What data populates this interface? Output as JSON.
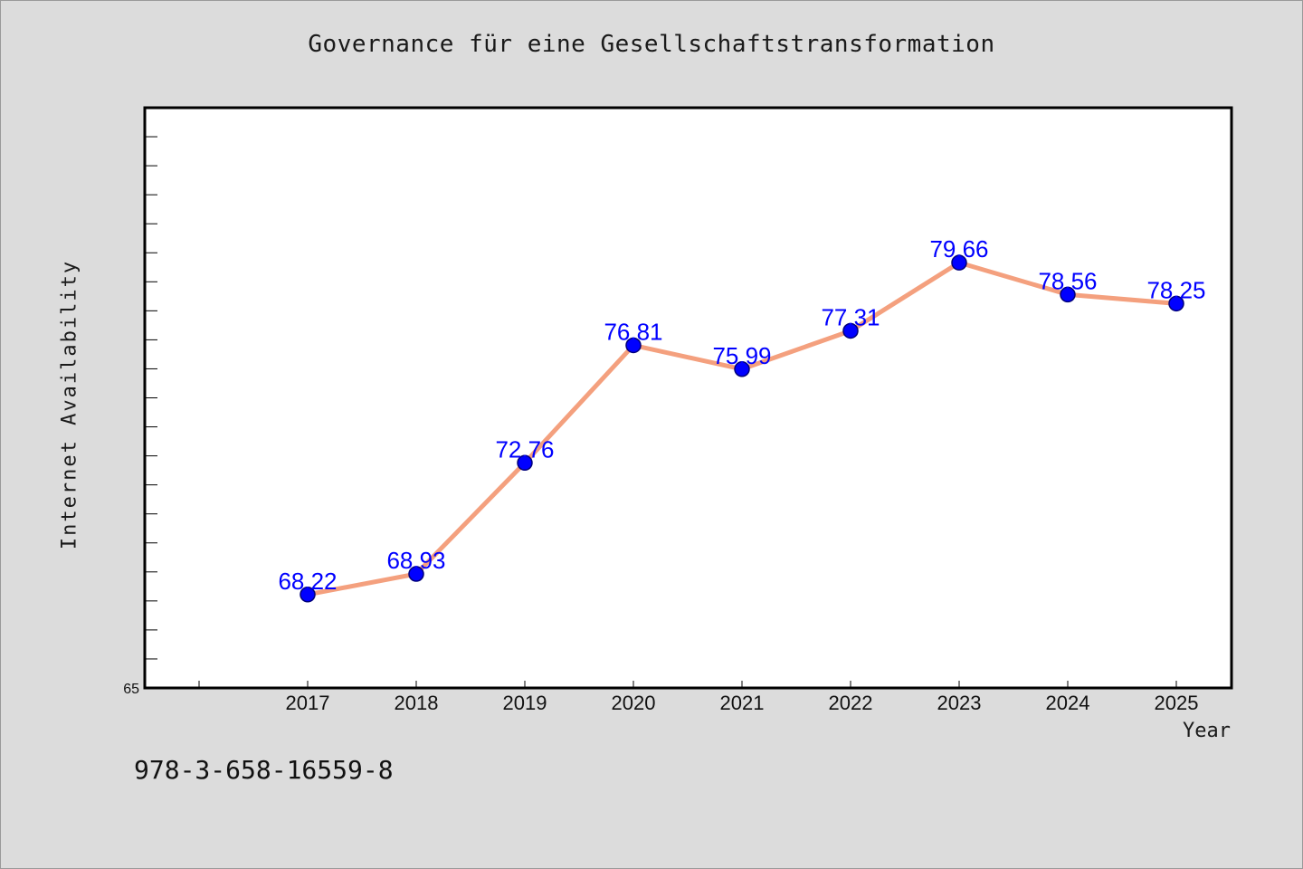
{
  "chart_data": {
    "type": "line",
    "title": "Governance für eine Gesellschaftstransformation",
    "xlabel": "Year",
    "ylabel": "Internet Availability",
    "categories": [
      "2017",
      "2018",
      "2019",
      "2020",
      "2021",
      "2022",
      "2023",
      "2024",
      "2025"
    ],
    "series": [
      {
        "values": [
          68.22,
          68.93,
          72.76,
          76.81,
          75.99,
          77.31,
          79.66,
          78.56,
          78.25
        ],
        "data_labels": [
          "68.22",
          "68.93",
          "72.76",
          "76.81",
          "75.99",
          "77.31",
          "79.66",
          "78.56",
          "78.25"
        ]
      }
    ],
    "ylim": [
      65,
      85
    ],
    "y_tick_labels": [
      "65"
    ],
    "grid": false,
    "colors": {
      "line": "#f4a07e",
      "marker": "#0000ff",
      "data_label": "#0000ff",
      "plot_background": "#ffffff",
      "figure_background": "#dcdcdc"
    }
  },
  "footer": {
    "code": "978-3-658-16559-8"
  }
}
